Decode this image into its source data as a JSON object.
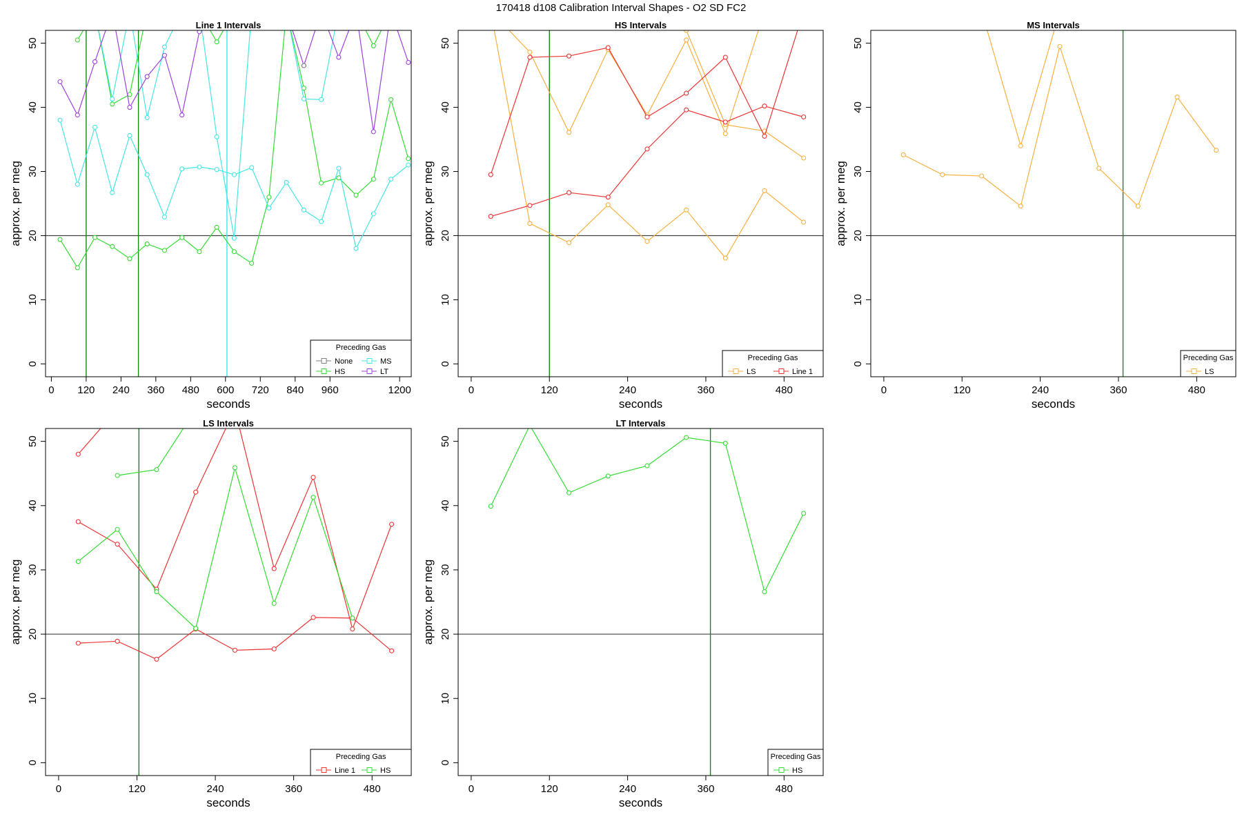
{
  "figure_title": "170418    d108    Calibration Interval Shapes - O2 SD FC2",
  "colors": {
    "None": "#808080",
    "HS": "#33dd33",
    "MS": "#44e6e6",
    "LT": "#a040e0",
    "LS": "#f8b040",
    "Line 1": "#ee3333",
    "axis": "#000000",
    "ref": "#404040",
    "vline": "#118811"
  },
  "chart_data": [
    {
      "type": "line",
      "title": "Line 1 Intervals",
      "xlabel": "seconds",
      "ylabel": "approx. per meg",
      "xlim": [
        -20,
        1240
      ],
      "ylim": [
        -2,
        52
      ],
      "xticks": [
        0,
        120,
        240,
        360,
        480,
        600,
        720,
        840,
        960,
        1200
      ],
      "yticks": [
        0,
        10,
        20,
        30,
        40,
        50
      ],
      "hline": 20,
      "vlines": [
        {
          "x": 120,
          "color": "HS"
        },
        {
          "x": 300,
          "color": "HS"
        },
        {
          "x": 605,
          "color": "MS"
        }
      ],
      "legend": {
        "title": "Preceding Gas",
        "entries": [
          "None",
          "MS",
          "HS",
          "LT"
        ],
        "cols": 2,
        "loc": "bottomright"
      },
      "series": [
        {
          "name": "HS",
          "x": [
            30,
            90,
            150,
            210,
            270,
            330,
            390,
            450,
            510,
            570,
            630,
            690,
            750,
            810,
            870,
            930,
            990,
            1050,
            1110,
            1170,
            1230
          ],
          "y": [
            19.4,
            15.0,
            19.7,
            18.3,
            16.4,
            18.7,
            17.7,
            19.7,
            17.5,
            21.3,
            17.5,
            15.7,
            26.0,
            55,
            43.0,
            28.2,
            29.0,
            26.3,
            28.8,
            41.2,
            32.0
          ]
        },
        {
          "name": "HS",
          "x": [
            90,
            150,
            210,
            270,
            330,
            390,
            450,
            510,
            570,
            630,
            690,
            750,
            810,
            870,
            930,
            990,
            1050,
            1110,
            1170,
            1230
          ],
          "y": [
            50.5,
            55,
            40.5,
            42.0,
            55,
            55,
            55,
            55,
            50.2,
            55,
            55,
            55,
            55,
            55,
            55,
            55,
            55,
            49.6,
            55,
            55
          ]
        },
        {
          "name": "MS",
          "x": [
            30,
            90,
            150,
            210,
            270,
            330,
            390,
            450,
            510,
            570,
            630,
            690,
            750,
            810,
            870,
            930,
            990,
            1050,
            1110,
            1170,
            1230
          ],
          "y": [
            38.0,
            28.0,
            36.9,
            26.7,
            35.6,
            29.5,
            22.9,
            30.4,
            30.7,
            30.3,
            29.5,
            30.6,
            24.3,
            28.3,
            24.0,
            22.2,
            30.5,
            18.0,
            23.4,
            28.8,
            31.0
          ]
        },
        {
          "name": "MS",
          "x": [
            30,
            90,
            150,
            210,
            270,
            330,
            390,
            450,
            510,
            570,
            630,
            690,
            750,
            810,
            870,
            930,
            990,
            1050,
            1110,
            1170,
            1230
          ],
          "y": [
            55,
            55,
            55,
            41.3,
            55,
            38.4,
            49.4,
            55,
            55,
            35.4,
            19.6,
            55,
            55,
            55,
            41.3,
            41.2,
            55,
            55,
            55,
            55,
            55
          ]
        },
        {
          "name": "LT",
          "x": [
            30,
            90,
            150,
            210,
            270,
            330,
            390,
            450,
            510,
            570,
            630,
            690,
            750,
            810,
            870,
            930,
            990,
            1050,
            1110,
            1170,
            1230
          ],
          "y": [
            44.0,
            38.8,
            47.1,
            55,
            40.0,
            44.8,
            48.1,
            38.8,
            51.8,
            55,
            55,
            55,
            55,
            55,
            46.5,
            55,
            47.8,
            55,
            36.2,
            55,
            47.0
          ]
        },
        {
          "name": "None",
          "x": [
            870
          ],
          "y": [
            46.5
          ]
        }
      ]
    },
    {
      "type": "line",
      "title": "HS Intervals",
      "xlabel": "seconds",
      "ylabel": "approx. per meg",
      "xlim": [
        -20,
        540
      ],
      "ylim": [
        -2,
        52
      ],
      "xticks": [
        0,
        120,
        240,
        360,
        480
      ],
      "yticks": [
        0,
        10,
        20,
        30,
        40,
        50
      ],
      "hline": 20,
      "vlines": [
        {
          "x": 120,
          "color": "HS"
        }
      ],
      "legend": {
        "title": "Preceding Gas",
        "entries": [
          "LS",
          "Line 1"
        ],
        "cols": 2,
        "loc": "bottomright"
      },
      "series": [
        {
          "name": "LS",
          "x": [
            30,
            90,
            150,
            210,
            270,
            330,
            390,
            450,
            510
          ],
          "y": [
            55,
            21.9,
            18.9,
            24.8,
            19.1,
            24.0,
            16.5,
            27.0,
            22.1
          ]
        },
        {
          "name": "LS",
          "x": [
            30,
            90,
            150,
            210,
            270,
            330,
            390,
            450,
            510
          ],
          "y": [
            55,
            48.6,
            36.1,
            49.0,
            38.8,
            50.5,
            35.9,
            55,
            55
          ]
        },
        {
          "name": "LS",
          "x": [
            330,
            390,
            450,
            510
          ],
          "y": [
            52,
            37.3,
            36.3,
            32.1
          ]
        },
        {
          "name": "Line 1",
          "x": [
            30,
            90,
            150,
            210,
            270,
            330,
            390,
            450,
            510
          ],
          "y": [
            23.0,
            24.7,
            26.7,
            26.0,
            33.5,
            39.6,
            37.7,
            40.2,
            38.5
          ]
        },
        {
          "name": "Line 1",
          "x": [
            30,
            90,
            150,
            210,
            270,
            330,
            390,
            450,
            510
          ],
          "y": [
            29.5,
            47.8,
            48.0,
            49.3,
            38.5,
            42.2,
            47.8,
            35.5,
            55
          ]
        }
      ]
    },
    {
      "type": "line",
      "title": "MS Intervals",
      "xlabel": "seconds",
      "ylabel": "approx. per meg",
      "xlim": [
        -20,
        540
      ],
      "ylim": [
        -2,
        52
      ],
      "xticks": [
        0,
        120,
        240,
        360,
        480
      ],
      "yticks": [
        0,
        10,
        20,
        30,
        40,
        50
      ],
      "hline": 20,
      "vlines": [
        {
          "x": 367,
          "color": "HS"
        }
      ],
      "legend": {
        "title": "Preceding Gas",
        "entries": [
          "LS"
        ],
        "cols": 1,
        "loc": "bottomright"
      },
      "series": [
        {
          "name": "LS",
          "x": [
            30,
            90,
            150,
            210,
            270,
            330,
            390,
            450,
            510
          ],
          "y": [
            32.6,
            29.5,
            29.3,
            24.6,
            49.5,
            30.5,
            24.6,
            41.6,
            33.3
          ]
        },
        {
          "name": "LS",
          "x": [
            150,
            210,
            270
          ],
          "y": [
            55,
            34.0,
            55
          ]
        }
      ]
    },
    {
      "type": "line",
      "title": "LS Intervals",
      "xlabel": "seconds",
      "ylabel": "approx. per meg",
      "xlim": [
        -20,
        540
      ],
      "ylim": [
        -2,
        52
      ],
      "xticks": [
        0,
        120,
        240,
        360,
        480
      ],
      "yticks": [
        0,
        10,
        20,
        30,
        40,
        50
      ],
      "hline": 20,
      "vlines": [
        {
          "x": 123,
          "color": "HS"
        }
      ],
      "legend": {
        "title": "Preceding Gas",
        "entries": [
          "Line 1",
          "HS"
        ],
        "cols": 2,
        "loc": "bottomright"
      },
      "series": [
        {
          "name": "Line 1",
          "x": [
            30,
            90,
            150,
            210,
            270,
            330,
            390,
            450,
            510
          ],
          "y": [
            18.6,
            18.9,
            16.1,
            20.8,
            17.5,
            17.7,
            22.6,
            22.5,
            17.4
          ]
        },
        {
          "name": "Line 1",
          "x": [
            30,
            90,
            150,
            210,
            270,
            330,
            390,
            450,
            510
          ],
          "y": [
            37.5,
            34.0,
            27.0,
            42.1,
            55,
            30.2,
            44.4,
            20.8,
            37.1
          ]
        },
        {
          "name": "Line 1",
          "x": [
            30,
            90
          ],
          "y": [
            48.0,
            55
          ]
        },
        {
          "name": "HS",
          "x": [
            30,
            90,
            150,
            210,
            270,
            330,
            390,
            450
          ],
          "y": [
            31.3,
            36.3,
            26.6,
            20.9,
            45.9,
            24.8,
            41.3,
            22.5
          ]
        },
        {
          "name": "HS",
          "x": [
            90,
            150,
            210
          ],
          "y": [
            44.7,
            45.6,
            55
          ]
        }
      ]
    },
    {
      "type": "line",
      "title": "LT Intervals",
      "xlabel": "seconds",
      "ylabel": "approx. per meg",
      "xlim": [
        -20,
        540
      ],
      "ylim": [
        -2,
        52
      ],
      "xticks": [
        0,
        120,
        240,
        360,
        480
      ],
      "yticks": [
        0,
        10,
        20,
        30,
        40,
        50
      ],
      "hline": 20,
      "vlines": [
        {
          "x": 367,
          "color": "HS"
        }
      ],
      "legend": {
        "title": "Preceding Gas",
        "entries": [
          "HS"
        ],
        "cols": 1,
        "loc": "bottomright"
      },
      "series": [
        {
          "name": "HS",
          "x": [
            30,
            90,
            150,
            210,
            270,
            330,
            390,
            450,
            510
          ],
          "y": [
            39.9,
            52.5,
            42.0,
            44.6,
            46.2,
            50.6,
            49.7,
            26.6,
            38.8
          ]
        }
      ]
    }
  ]
}
